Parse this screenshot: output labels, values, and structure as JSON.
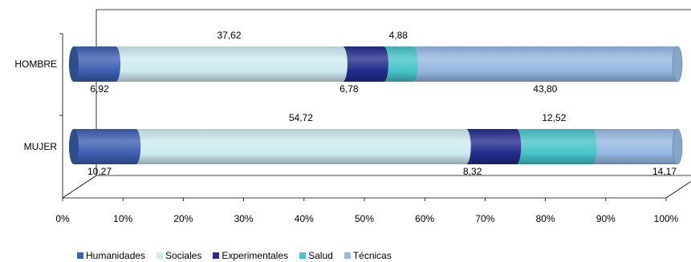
{
  "chart_data": {
    "type": "bar",
    "orientation": "horizontal",
    "stacked": "percent",
    "categories": [
      "HOMBRE",
      "MUJER"
    ],
    "series": [
      {
        "name": "Humanidades",
        "color": "#3c5fb0",
        "values": [
          6.92,
          10.27
        ],
        "labels": [
          "6,92",
          "10,27"
        ]
      },
      {
        "name": "Sociales",
        "color": "#cdeaf0",
        "values": [
          37.62,
          54.72
        ],
        "labels": [
          "37,62",
          "54,72"
        ]
      },
      {
        "name": "Experimentales",
        "color": "#232c8c",
        "values": [
          6.78,
          8.32
        ],
        "labels": [
          "6,78",
          "8,32"
        ]
      },
      {
        "name": "Salud",
        "color": "#45c4c8",
        "values": [
          4.88,
          12.52
        ],
        "labels": [
          "4,88",
          "12,52"
        ]
      },
      {
        "name": "Técnicas",
        "color": "#94b8e2",
        "values": [
          43.8,
          14.17
        ],
        "labels": [
          "43,80",
          "14,17"
        ]
      }
    ],
    "x_ticks": [
      "0%",
      "10%",
      "20%",
      "30%",
      "40%",
      "50%",
      "60%",
      "70%",
      "80%",
      "90%",
      "100%"
    ],
    "xlim": [
      0,
      100
    ],
    "grid": false,
    "legend_position": "bottom-left",
    "title": "",
    "xlabel": "",
    "ylabel": ""
  }
}
